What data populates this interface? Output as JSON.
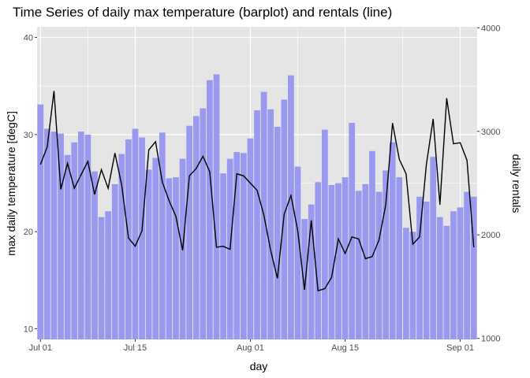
{
  "chart_data": {
    "type": "bar",
    "title": "Time Series of daily max temperature (barplot) and rentals (line)",
    "xlabel": "day",
    "ylabel": "max daily temperature [degC]",
    "y2label": "daily rentals",
    "x_ticks": [
      "Jul 01",
      "Jul 15",
      "Aug 01",
      "Aug 15",
      "Sep 01"
    ],
    "x_tick_days": [
      0,
      14,
      31,
      45,
      62
    ],
    "ylim": [
      8.9,
      41.1
    ],
    "y_ticks": [
      10,
      20,
      30,
      40
    ],
    "y2lim": [
      990,
      4010
    ],
    "y2_ticks": [
      1000,
      2000,
      3000,
      4000
    ],
    "grid": true,
    "colors": {
      "bars": "#9999f0",
      "line": "#000000",
      "panel": "#e5e5e5",
      "grid": "#ffffff"
    },
    "series": [
      {
        "kind": "bar",
        "axis": "left",
        "values": [
          33.1,
          30.6,
          30.3,
          30.1,
          27.9,
          29.2,
          30.3,
          30.0,
          26.2,
          21.5,
          22.1,
          24.9,
          28.0,
          29.5,
          30.6,
          29.7,
          26.4,
          27.6,
          30.2,
          25.5,
          25.6,
          27.5,
          30.9,
          31.9,
          32.7,
          35.6,
          36.2,
          26.0,
          27.5,
          28.2,
          28.1,
          29.6,
          32.5,
          34.4,
          32.6,
          30.8,
          33.6,
          36.1,
          26.7,
          21.3,
          22.8,
          25.1,
          30.5,
          24.8,
          25.0,
          25.6,
          31.2,
          24.2,
          24.9,
          28.3,
          24.1,
          26.3,
          29.2,
          25.6,
          20.4,
          20.0,
          23.6,
          23.1,
          27.7,
          21.5,
          20.6,
          22.1,
          22.5,
          24.1,
          23.6
        ]
      },
      {
        "kind": "line",
        "axis": "right",
        "values": [
          2680,
          2850,
          3390,
          2440,
          2690,
          2450,
          2580,
          2710,
          2390,
          2630,
          2450,
          2790,
          2480,
          1970,
          1890,
          2040,
          2820,
          2900,
          2510,
          2330,
          2180,
          1850,
          2570,
          2640,
          2760,
          2610,
          1880,
          1890,
          1860,
          2590,
          2570,
          2500,
          2430,
          2190,
          1850,
          1580,
          2200,
          2380,
          2040,
          1470,
          2140,
          1460,
          1480,
          1590,
          1960,
          1820,
          1980,
          1960,
          1770,
          1790,
          1950,
          2290,
          3080,
          2730,
          2590,
          1910,
          1980,
          2680,
          3120,
          2290,
          3320,
          2880,
          2890,
          2720,
          1880
        ]
      }
    ]
  }
}
